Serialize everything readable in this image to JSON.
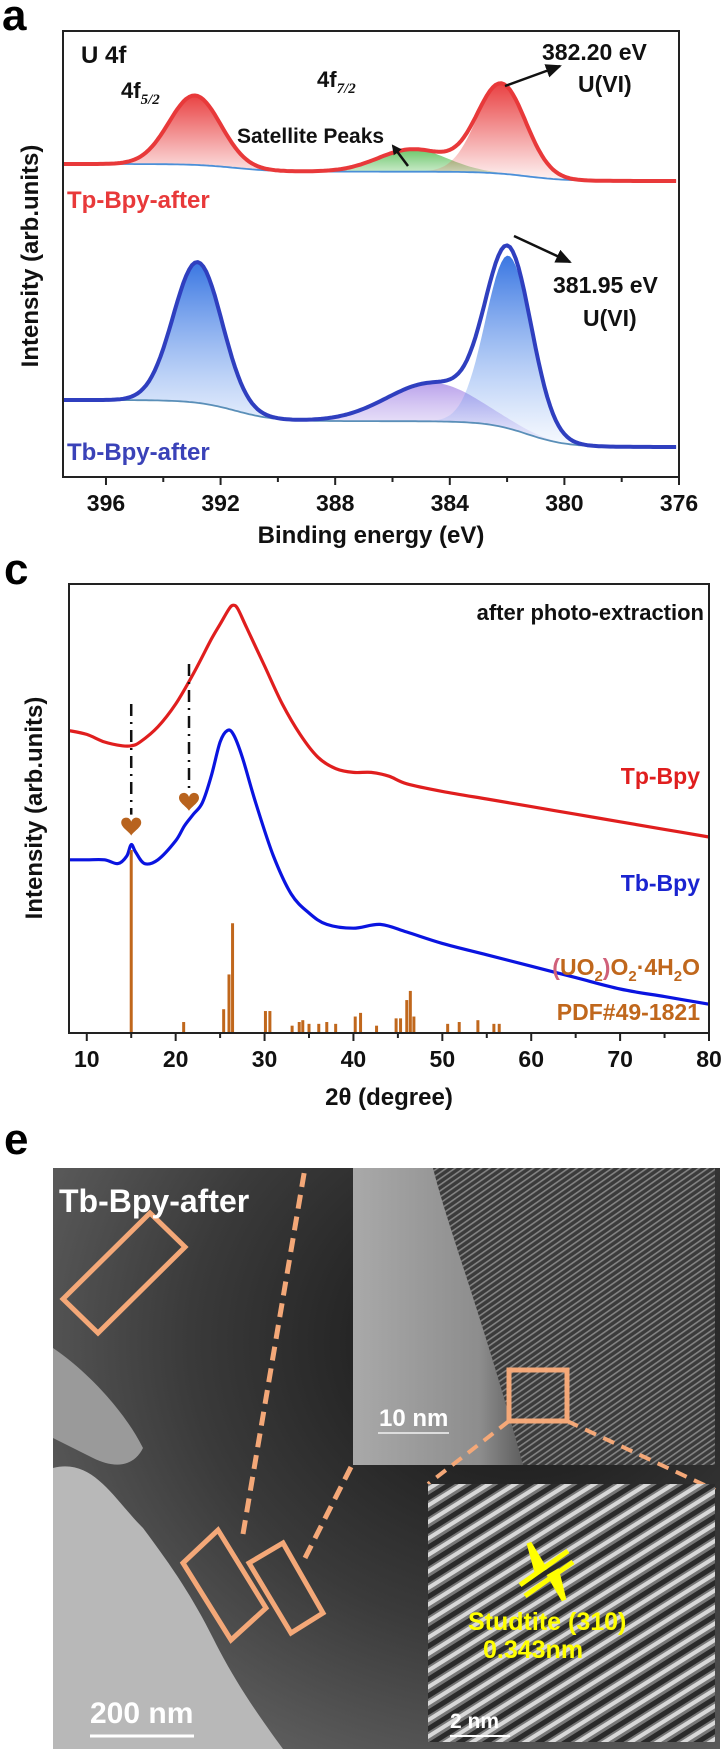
{
  "figure": {
    "panel_labels": [
      "a",
      "c",
      "e"
    ]
  },
  "chart_data": [
    {
      "panel": "a",
      "type": "line",
      "title": "U 4f",
      "xlabel": "Binding energy (eV)",
      "ylabel": "Intensity (arb.units)",
      "xlim": [
        397.5,
        376
      ],
      "x_reversed": true,
      "xticks": [
        396,
        392,
        388,
        384,
        380,
        376
      ],
      "xtick_labels": [
        "396",
        "392",
        "388",
        "384",
        "380",
        "376"
      ],
      "grid": false,
      "series": [
        {
          "name": "Tp-Bpy-after",
          "color": "#e8393a",
          "fill_color": "#e8393a",
          "baseline": 1.0,
          "peaks": [
            {
              "label": "4f5/2",
              "center": 392.9,
              "height": 0.62,
              "width": 0.9
            },
            {
              "label": "Satellite",
              "center": 385.3,
              "height": 0.2,
              "width": 1.2,
              "fill_color": "#5cc05a"
            },
            {
              "label": "4f7/2",
              "center": 382.2,
              "height": 0.8,
              "width": 0.85
            }
          ]
        },
        {
          "name": "Tb-Bpy-after",
          "color": "#2f3fbf",
          "fill_color": "#3d7ee0",
          "baseline": 0.0,
          "peaks": [
            {
              "label": "4f5/2",
              "center": 392.8,
              "height": 1.1,
              "width": 0.85
            },
            {
              "label": "Satellite",
              "center": 384.6,
              "height": 0.3,
              "width": 1.6,
              "fill_color": "#b49be6"
            },
            {
              "label": "4f7/2",
              "center": 381.95,
              "height": 1.35,
              "width": 0.8
            }
          ]
        }
      ],
      "annotations": {
        "core_level": "U 4f",
        "peak_5_2": "4f",
        "peak_5_2_sub": "5/2",
        "peak_7_2": "4f",
        "peak_7_2_sub": "7/2",
        "satellite": "Satellite Peaks",
        "tp_energy": "382.20 eV",
        "tp_state": "U(VI)",
        "tb_energy": "381.95 eV",
        "tb_state": "U(VI)",
        "tp_label": "Tp-Bpy-after",
        "tb_label": "Tb-Bpy-after"
      }
    },
    {
      "panel": "c",
      "type": "line",
      "title": "after photo-extraction",
      "xlabel": "2θ (degree)",
      "ylabel": "Intensity (arb.units)",
      "xlim": [
        8,
        80
      ],
      "xticks": [
        10,
        20,
        30,
        40,
        50,
        60,
        70,
        80
      ],
      "xtick_labels": [
        "10",
        "20",
        "30",
        "40",
        "50",
        "60",
        "70",
        "80"
      ],
      "grid": false,
      "series": [
        {
          "name": "Tp-Bpy",
          "color": "#e01e1e",
          "x": [
            8,
            10,
            12,
            14,
            15,
            16,
            18,
            20,
            22,
            24,
            25,
            26,
            26.5,
            27,
            28,
            30,
            32,
            34,
            36,
            38,
            40,
            42,
            44,
            46,
            50,
            55,
            60,
            65,
            70,
            75,
            80
          ],
          "y": [
            0.63,
            0.62,
            0.6,
            0.59,
            0.59,
            0.6,
            0.64,
            0.7,
            0.78,
            0.87,
            0.91,
            0.95,
            0.96,
            0.95,
            0.9,
            0.8,
            0.7,
            0.62,
            0.56,
            0.53,
            0.52,
            0.52,
            0.51,
            0.49,
            0.47,
            0.45,
            0.43,
            0.41,
            0.39,
            0.37,
            0.35
          ]
        },
        {
          "name": "Tb-Bpy",
          "color": "#0a14e0",
          "x": [
            8,
            10,
            12,
            13.5,
            14.5,
            15,
            15.5,
            16.5,
            18,
            20,
            21,
            22,
            23,
            24,
            25,
            25.8,
            26.5,
            27.5,
            29,
            31,
            33,
            35,
            37,
            40,
            43,
            46,
            50,
            55,
            60,
            65,
            70,
            75,
            80
          ],
          "y": [
            0.29,
            0.29,
            0.29,
            0.28,
            0.3,
            0.33,
            0.31,
            0.28,
            0.29,
            0.34,
            0.38,
            0.41,
            0.44,
            0.51,
            0.6,
            0.63,
            0.62,
            0.56,
            0.44,
            0.3,
            0.2,
            0.15,
            0.12,
            0.11,
            0.12,
            0.1,
            0.07,
            0.04,
            0.01,
            -0.02,
            -0.05,
            -0.07,
            -0.09
          ]
        }
      ],
      "reference": {
        "name": "(UO2)O2·4H2O PDF#49-1821",
        "color": "#c0671c",
        "x": [
          15.0,
          20.9,
          25.4,
          26.0,
          26.4,
          30.1,
          30.6,
          33.1,
          33.9,
          34.3,
          35.0,
          36.1,
          37.0,
          38.0,
          40.2,
          40.8,
          42.6,
          44.8,
          45.3,
          46.0,
          46.4,
          46.8,
          50.6,
          51.9,
          54.0,
          55.8,
          56.4
        ],
        "intensity": [
          1.0,
          0.06,
          0.13,
          0.32,
          0.6,
          0.12,
          0.12,
          0.04,
          0.06,
          0.07,
          0.05,
          0.05,
          0.06,
          0.05,
          0.09,
          0.11,
          0.04,
          0.08,
          0.08,
          0.18,
          0.23,
          0.09,
          0.05,
          0.06,
          0.07,
          0.05,
          0.05
        ]
      },
      "markers": [
        {
          "x": 15.0,
          "symbol": "heart",
          "color": "#b8631e"
        },
        {
          "x": 21.5,
          "symbol": "heart",
          "color": "#b8631e"
        }
      ],
      "annotations": {
        "condition": "after photo-extraction",
        "tp_label": "Tp-Bpy",
        "tb_label": "Tb-Bpy",
        "ref_formula_a": "(",
        "ref_formula_b": "UO",
        "ref_formula_c": "2",
        "ref_formula_d": ")",
        "ref_formula_e": "O",
        "ref_formula_f": "2",
        "ref_formula_g": "·4H",
        "ref_formula_h": "2",
        "ref_formula_i": "O",
        "ref_pdf": "PDF#49-1821"
      }
    }
  ],
  "tem": {
    "panel": "e",
    "sample_label": "Tb-Bpy-after",
    "scale_main": "200 nm",
    "scale_hrtem": "10 nm",
    "scale_fft": "2 nm",
    "phase_label": "Studtite (310)",
    "d_spacing": "0.343nm",
    "highlight_color": "#f4a878",
    "annotation_color": "#ffff00"
  }
}
